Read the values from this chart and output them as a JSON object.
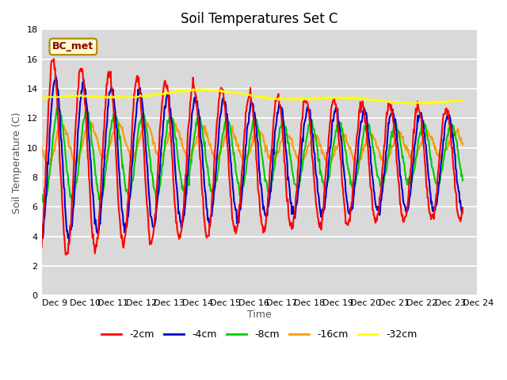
{
  "title": "Soil Temperatures Set C",
  "xlabel": "Time",
  "ylabel": "Soil Temperature (C)",
  "annotation": "BC_met",
  "ylim": [
    0,
    18
  ],
  "x_tick_labels": [
    "Dec 9",
    "Dec 10",
    "Dec 11",
    "Dec 12",
    "Dec 13",
    "Dec 14",
    "Dec 15",
    "Dec 16",
    "Dec 17",
    "Dec 18",
    "Dec 19",
    "Dec 20",
    "Dec 21",
    "Dec 22",
    "Dec 23",
    "Dec 24"
  ],
  "series_labels": [
    "-2cm",
    "-4cm",
    "-8cm",
    "-16cm",
    "-32cm"
  ],
  "series_colors": [
    "#ff0000",
    "#0000cc",
    "#00cc00",
    "#ff9900",
    "#ffff00"
  ],
  "line_width": 1.5,
  "plot_bg": "#d9d9d9",
  "annotation_bg": "#ffffcc",
  "annotation_border": "#aa8800",
  "title_fontsize": 12,
  "label_fontsize": 9,
  "tick_fontsize": 8,
  "grid_color": "#ffffff",
  "grid_lw": 1.2
}
